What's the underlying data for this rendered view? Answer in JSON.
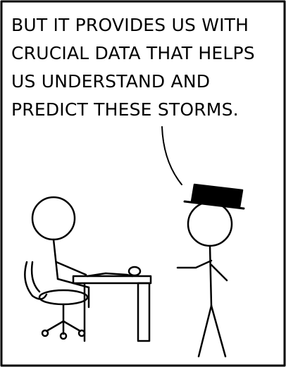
{
  "comic": {
    "speech_lines": [
      "BUT IT PROVIDES US WITH",
      "CRUCIAL DATA THAT HELPS",
      "US UNDERSTAND AND",
      "PREDICT THESE STORMS."
    ]
  }
}
